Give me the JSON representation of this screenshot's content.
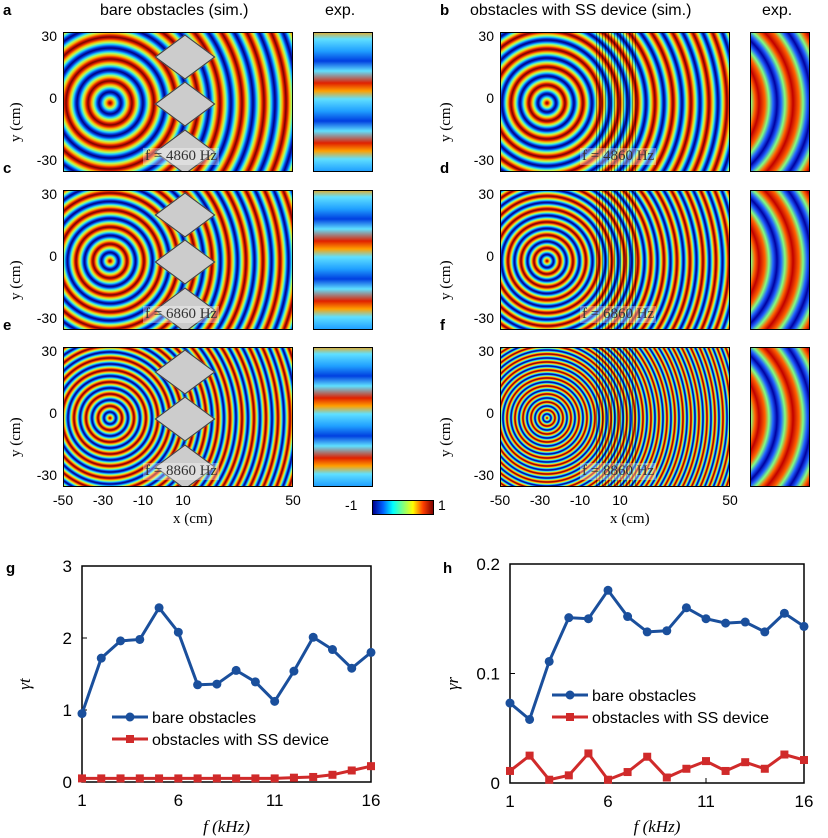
{
  "panels": {
    "a": {
      "letter": "a",
      "title": "bare obstacles (sim.)",
      "exp": "exp.",
      "freq": "f = 4860 Hz"
    },
    "b": {
      "letter": "b",
      "title": "obstacles with SS device (sim.)",
      "exp": "exp.",
      "freq": "f = 4860 Hz"
    },
    "c": {
      "letter": "c",
      "freq": "f = 6860 Hz"
    },
    "d": {
      "letter": "d",
      "freq": "f = 6860 Hz"
    },
    "e": {
      "letter": "e",
      "freq": "f = 8860 Hz"
    },
    "f": {
      "letter": "f",
      "freq": "f = 8860 Hz"
    }
  },
  "axes": {
    "ylabel": "y (cm)",
    "xlabel": "x (cm)",
    "yticks": [
      "30",
      "0",
      "-30"
    ],
    "xticks": [
      "-50",
      "-30",
      "-10",
      "10",
      "50"
    ]
  },
  "colorbar": {
    "min": "-1",
    "max": "1"
  },
  "colors": {
    "blue": "#1a4f9c",
    "red": "#d02a2a"
  },
  "chart_data": [
    {
      "type": "line",
      "panel": "g",
      "ylabel": "γt",
      "xlabel": "f (kHz)",
      "xlim": [
        1,
        16
      ],
      "ylim": [
        0,
        3
      ],
      "xticks": [
        "1",
        "6",
        "11",
        "16"
      ],
      "yticks": [
        "0",
        "1",
        "2",
        "3"
      ],
      "legend": "center-left",
      "x": [
        1,
        2,
        3,
        4,
        5,
        6,
        7,
        8,
        9,
        10,
        11,
        12,
        13,
        14,
        15,
        16
      ],
      "series": [
        {
          "name": "bare obstacles",
          "marker": "circle",
          "values": [
            0.95,
            1.72,
            1.96,
            1.98,
            2.42,
            2.08,
            1.35,
            1.36,
            1.55,
            1.39,
            1.12,
            1.54,
            2.01,
            1.84,
            1.58,
            1.8
          ]
        },
        {
          "name": "obstacles with SS device",
          "marker": "square",
          "values": [
            0.05,
            0.05,
            0.05,
            0.05,
            0.05,
            0.05,
            0.05,
            0.05,
            0.05,
            0.05,
            0.05,
            0.06,
            0.07,
            0.1,
            0.16,
            0.22
          ]
        }
      ]
    },
    {
      "type": "line",
      "panel": "h",
      "ylabel": "γr",
      "xlabel": "f (kHz)",
      "xlim": [
        1,
        16
      ],
      "ylim": [
        0,
        0.2
      ],
      "xticks": [
        "1",
        "6",
        "11",
        "16"
      ],
      "yticks": [
        "0",
        "0.1",
        "0.2"
      ],
      "legend": "center-right",
      "x": [
        1,
        2,
        3,
        4,
        5,
        6,
        7,
        8,
        9,
        10,
        11,
        12,
        13,
        14,
        15,
        16
      ],
      "series": [
        {
          "name": "bare obstacles",
          "marker": "circle",
          "values": [
            0.073,
            0.058,
            0.111,
            0.151,
            0.15,
            0.176,
            0.152,
            0.138,
            0.139,
            0.16,
            0.15,
            0.146,
            0.147,
            0.138,
            0.155,
            0.143
          ]
        },
        {
          "name": "obstacles with SS device",
          "marker": "square",
          "values": [
            0.011,
            0.025,
            0.003,
            0.007,
            0.027,
            0.003,
            0.01,
            0.024,
            0.005,
            0.013,
            0.02,
            0.011,
            0.019,
            0.013,
            0.026,
            0.021
          ]
        }
      ]
    }
  ]
}
